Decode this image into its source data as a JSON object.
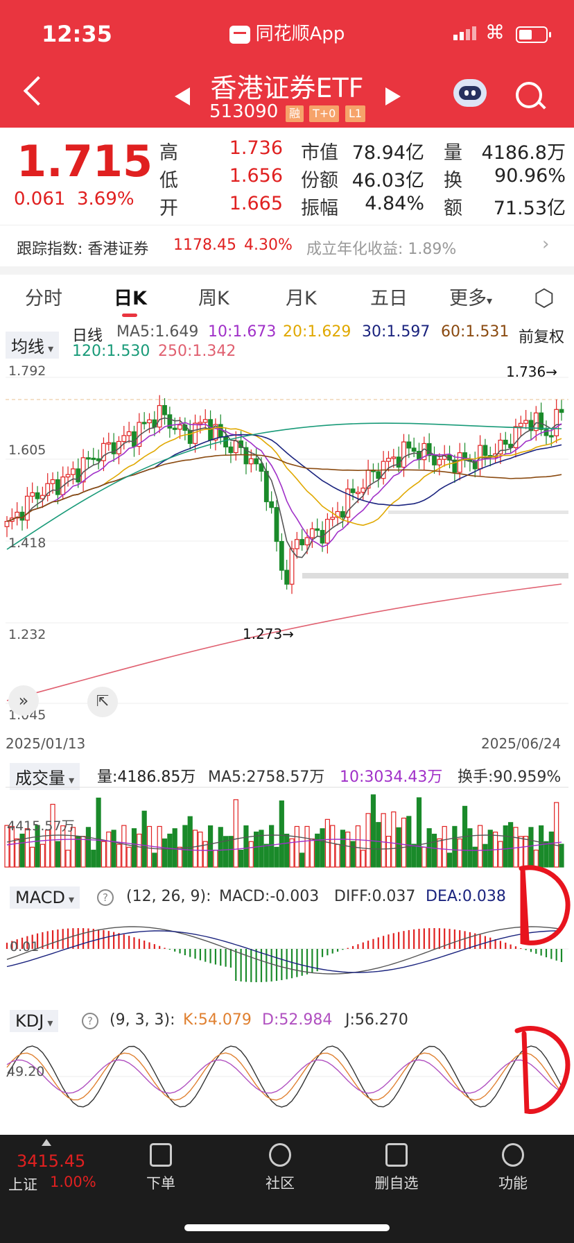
{
  "status_bar": {
    "time": "12:35",
    "app_name": "同花顺App"
  },
  "header": {
    "title": "香港证券ETF",
    "code": "513090",
    "tags": [
      "融",
      "T+0",
      "L1"
    ]
  },
  "quote": {
    "price": "1.715",
    "change": "0.061",
    "change_pct": "3.69%",
    "rows": [
      {
        "l1": "高",
        "v1": "1.736",
        "l2": "市值",
        "v2": "78.94亿",
        "l3": "量",
        "v3": "4186.8万"
      },
      {
        "l1": "低",
        "v1": "1.656",
        "l2": "份额",
        "v2": "46.03亿",
        "l3": "换",
        "v3": "90.96%"
      },
      {
        "l1": "开",
        "v1": "1.665",
        "l2": "振幅",
        "v2": "4.84%",
        "l3": "额",
        "v3": "71.53亿"
      }
    ]
  },
  "tracking": {
    "label": "跟踪指数: 香港证券",
    "value": "1178.45",
    "pct": "4.30%",
    "annual": "成立年化收益: 1.89%"
  },
  "tabs": [
    "分时",
    "日K",
    "周K",
    "月K",
    "五日",
    "更多"
  ],
  "chart": {
    "select_label": "均线",
    "period": "日线",
    "adjust": "前复权",
    "ma": {
      "ma5": "MA5:1.649",
      "ma10": "10:1.673",
      "ma20": "20:1.629",
      "ma30": "30:1.597",
      "ma60": "60:1.531",
      "ma120": "120:1.530",
      "ma250": "250:1.342"
    },
    "y_ticks": [
      "1.792",
      "1.605",
      "1.418",
      "1.232",
      "1.045"
    ],
    "high_mark": "1.736→",
    "low_mark": "1.273→",
    "date_start": "2025/01/13",
    "date_end": "2025/06/24",
    "colors": {
      "up": "#e02020",
      "down": "#1a8a2a",
      "ma5": "#555555",
      "ma10": "#a030c8",
      "ma20": "#e0a800",
      "ma30": "#1a237e",
      "ma60": "#8a4a10",
      "ma120": "#189a78",
      "ma250": "#e06070"
    }
  },
  "volume": {
    "select_label": "成交量",
    "vol": "量:4186.85万",
    "ma5": "MA5:2758.57万",
    "ma10": "10:3034.43万",
    "turnover": "换手:90.959%",
    "ref": "4415.57万"
  },
  "macd": {
    "select_label": "MACD",
    "params": "(12, 26, 9):",
    "macd": "MACD:-0.003",
    "diff": "DIFF:0.037",
    "dea": "DEA:0.038",
    "ref": "0.01"
  },
  "kdj": {
    "select_label": "KDJ",
    "params": "(9, 3, 3):",
    "k": "K:54.079",
    "d": "D:52.984",
    "j": "J:56.270",
    "ref": "49.20"
  },
  "bottom": {
    "index_value": "3415.45",
    "index_name": "上证",
    "index_pct": "1.00%",
    "nav": [
      "下单",
      "社区",
      "删自选",
      "功能"
    ]
  }
}
